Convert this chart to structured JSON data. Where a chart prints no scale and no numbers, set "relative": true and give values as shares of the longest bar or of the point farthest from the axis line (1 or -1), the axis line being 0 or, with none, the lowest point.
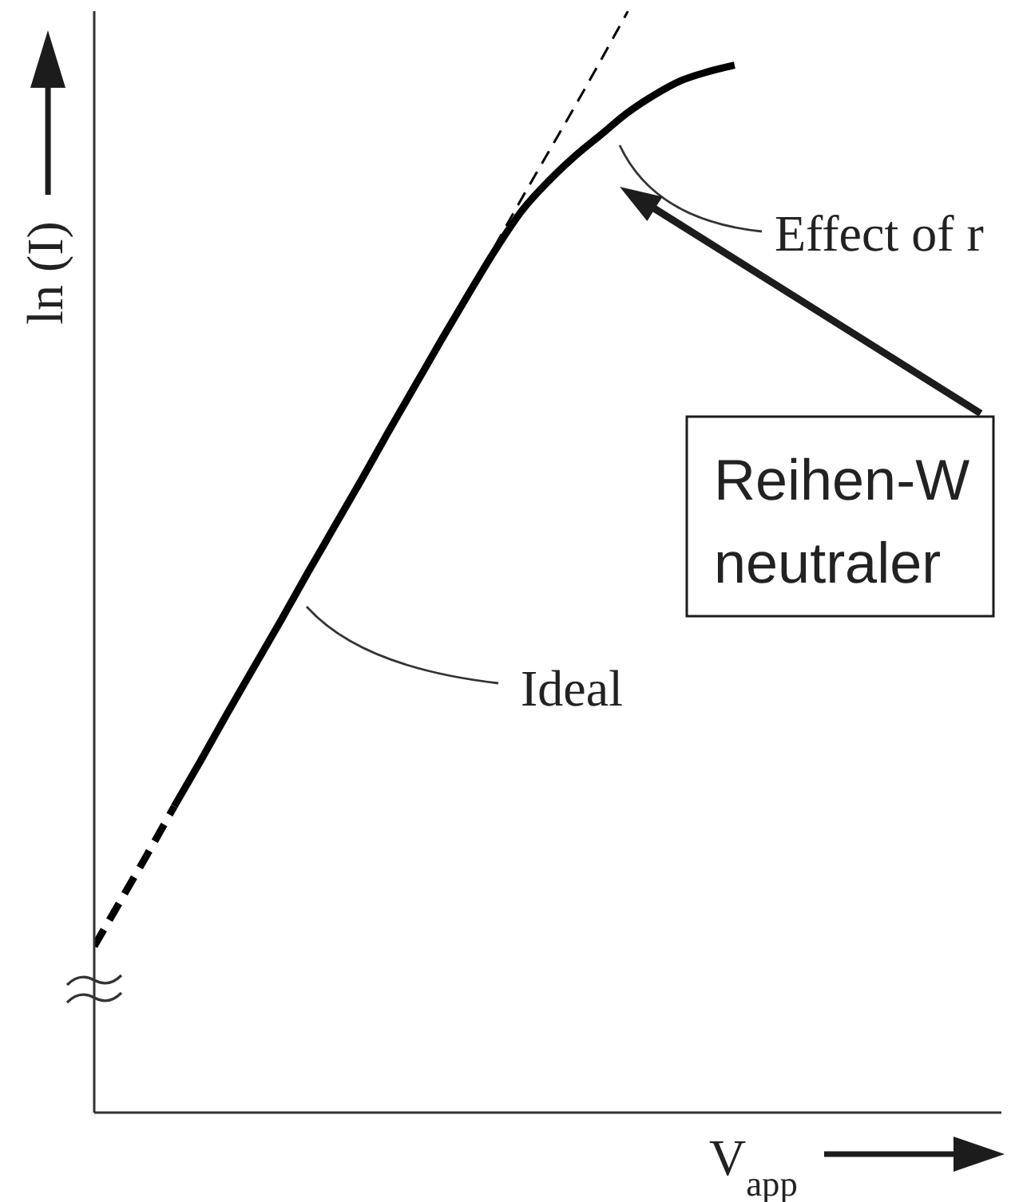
{
  "chart_data": {
    "type": "line",
    "relative": true,
    "xlabel": "V$_{app}$",
    "ylabel": "ln (I)",
    "marker": "none",
    "categories": [
      null,
      null,
      null,
      null,
      null,
      null,
      null,
      null,
      null,
      null,
      null,
      null,
      null,
      null,
      null,
      null,
      null,
      null,
      null,
      null,
      null,
      null,
      null,
      null,
      null,
      null,
      null,
      null,
      null,
      null,
      null,
      null,
      null,
      null,
      null
    ],
    "series": [
      {
        "color": "#000000",
        "line_style": "dashed",
        "values": [
          0.151,
          0.193,
          0.235,
          0.278,
          null,
          null,
          null,
          null,
          null,
          null,
          null,
          null,
          null,
          null,
          null,
          null,
          null,
          null,
          null,
          null,
          null,
          null,
          null,
          null,
          null,
          null,
          null,
          null,
          null,
          null,
          null,
          null,
          null,
          null,
          null
        ]
      },
      {
        "color": "#000000",
        "line_style": "solid",
        "values": [
          null,
          null,
          null,
          0.278,
          0.32,
          0.363,
          0.405,
          0.447,
          0.49,
          0.532,
          0.574,
          0.617,
          0.659,
          0.701,
          0.742,
          0.782,
          0.818,
          0.845,
          0.868,
          0.888,
          0.908,
          0.924,
          0.937,
          0.945,
          0.951,
          null,
          null,
          null,
          null,
          null,
          null,
          null,
          null,
          null,
          null
        ]
      },
      {
        "color": "#000000",
        "line_style": "dashed",
        "values": [
          null,
          null,
          null,
          null,
          null,
          null,
          null,
          null,
          null,
          null,
          null,
          null,
          null,
          null,
          null,
          0.786,
          0.829,
          0.871,
          0.913,
          0.956,
          1,
          null,
          null,
          null,
          null,
          null,
          null,
          null,
          null,
          null,
          null,
          null,
          null,
          null,
          null
        ]
      }
    ],
    "annotations": [
      "Ideal",
      "Effect of r",
      "Reihen-W\nneutraler"
    ]
  }
}
